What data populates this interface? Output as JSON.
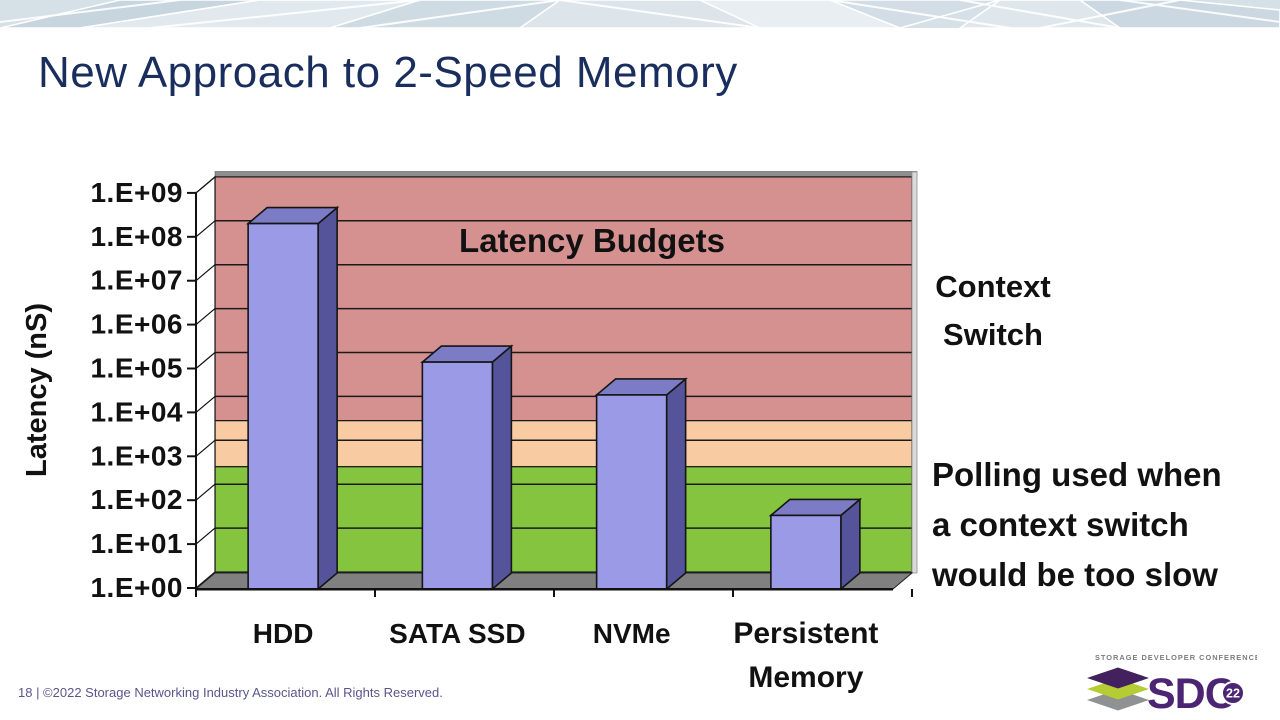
{
  "slide": {
    "title": "New Approach to 2-Speed Memory",
    "title_color": "#1A2E5E",
    "footer": "18 | ©2022 Storage Networking Industry Association. All Rights Reserved.",
    "footer_color": "#5A558C"
  },
  "chart_data": {
    "type": "bar",
    "title": "Latency Budgets",
    "ylabel": "Latency (nS)",
    "xlabel": "",
    "y_scale": "log10",
    "ylim": [
      1,
      1000000000
    ],
    "grid": true,
    "ytick_labels": [
      "1.E+00",
      "1.E+01",
      "1.E+02",
      "1.E+03",
      "1.E+04",
      "1.E+05",
      "1.E+06",
      "1.E+07",
      "1.E+08",
      "1.E+09"
    ],
    "categories": [
      "HDD",
      "SATA SSD",
      "NVMe",
      "Persistent Memory"
    ],
    "values": [
      200000000,
      140000,
      25000,
      45
    ],
    "background_bands": [
      {
        "label": "context-switch-zone",
        "from": 2800,
        "to": 1000000000,
        "color": "#D59190"
      },
      {
        "label": "transition-zone",
        "from": 250,
        "to": 2800,
        "color": "#F9CBA2"
      },
      {
        "label": "polling-zone",
        "from": 1,
        "to": 250,
        "color": "#84C43E"
      }
    ],
    "bar_colors": {
      "front": "#9B9AE7",
      "top": "#7C7BC5",
      "side": "#55549A"
    },
    "floor_color": "#808080",
    "wall_color": "#FFFFFF",
    "gridline_color": "#1A1A1A"
  },
  "annotations": {
    "context_switch": {
      "lines": [
        "Context",
        "Switch"
      ]
    },
    "polling": {
      "lines": [
        "Polling used when",
        "a context switch",
        "would be too slow"
      ]
    }
  },
  "logo": {
    "conference": "STORAGE DEVELOPER CONFERENCE",
    "acronym": "SDC",
    "year": "22",
    "purple": "#4B2573",
    "dark_purple": "#42215E",
    "green": "#B5CC35",
    "gray": "#8F9193",
    "text_gray": "#7C7C7C"
  }
}
